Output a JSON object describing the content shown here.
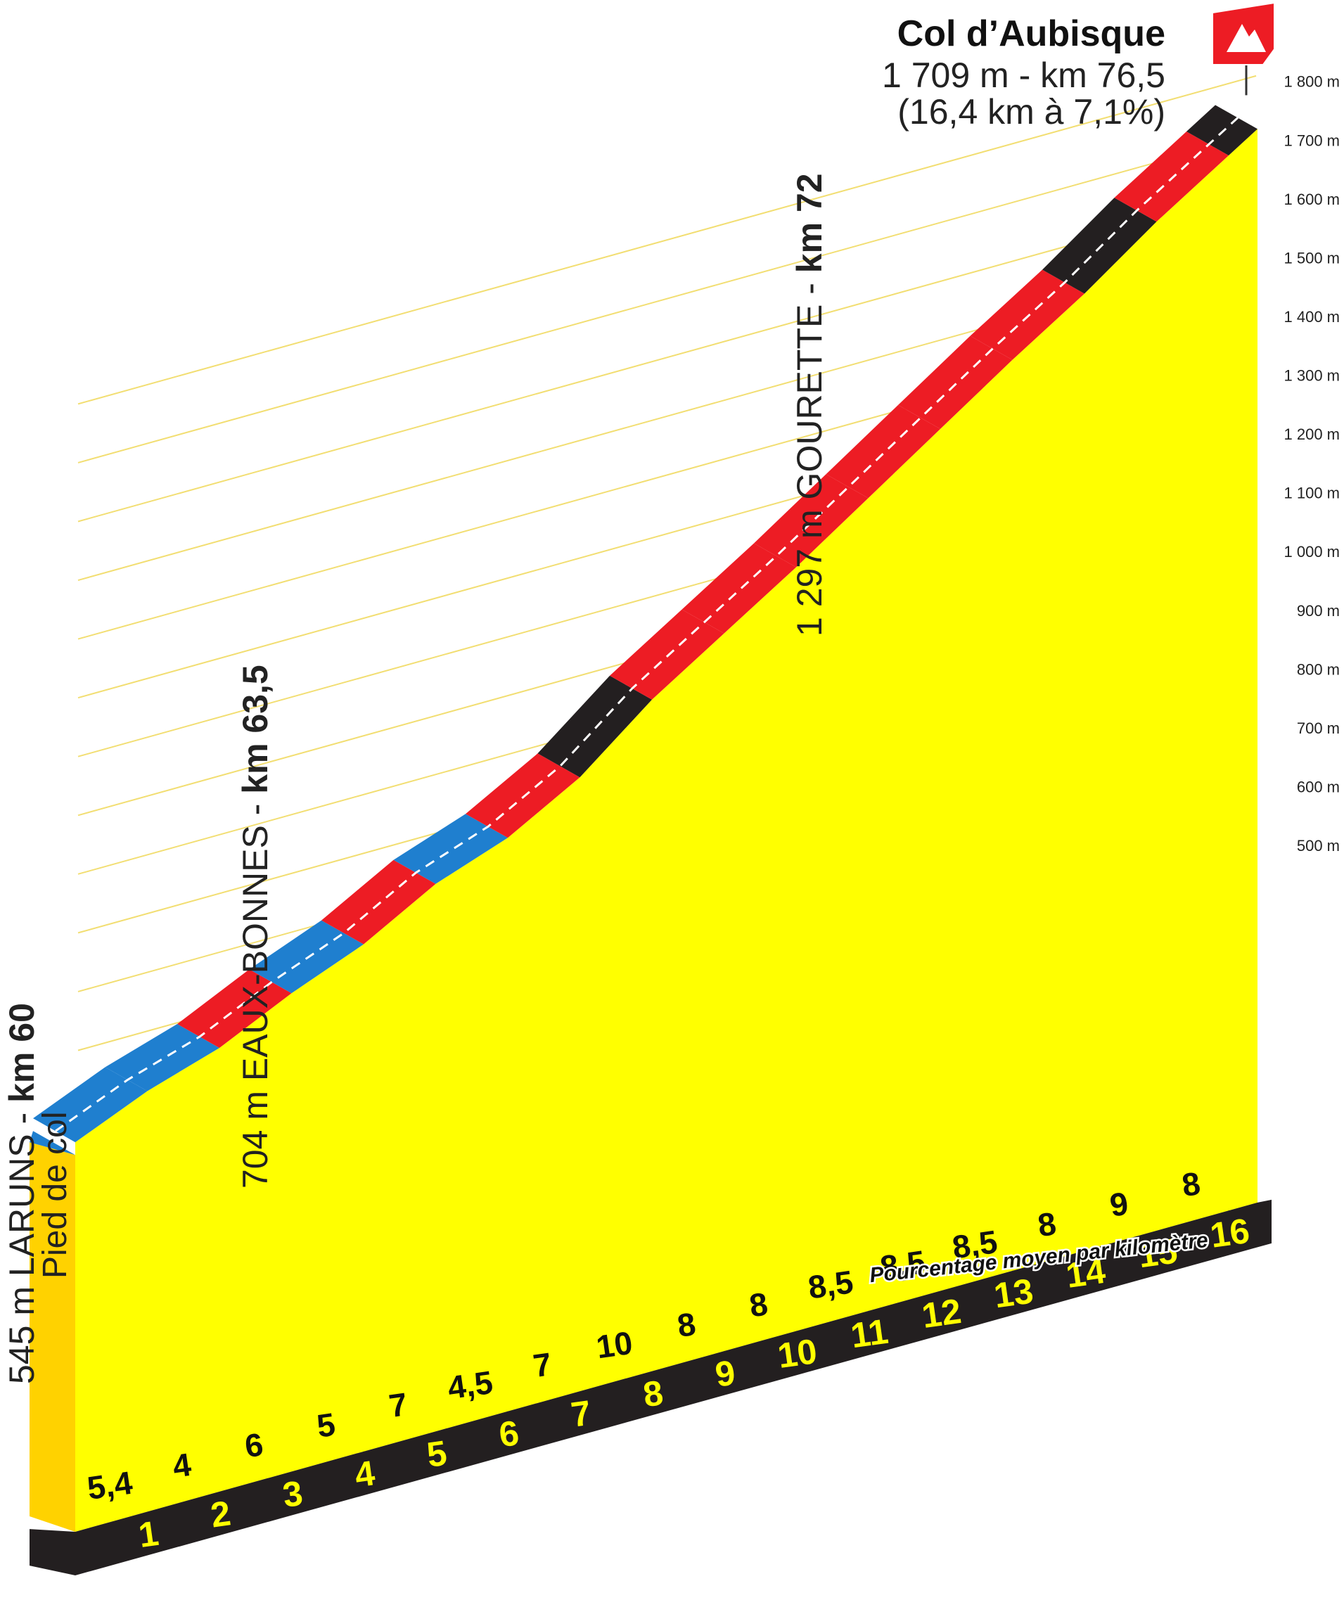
{
  "summit": {
    "name": "Col d’Aubisque",
    "line1": "1 709 m - km 76,5",
    "line2": "(16,4 km à 7,1%)"
  },
  "locations": [
    {
      "id": "laruns",
      "label": "545 m LARUNS - ",
      "label_bold": "km 60",
      "sub": "Pied de col"
    },
    {
      "id": "eaux-bonnes",
      "label": "704 m EAUX-BONNES - ",
      "label_bold": "km 63,5"
    },
    {
      "id": "gourette",
      "label": "1 297 m GOURETTE - ",
      "label_bold": "km 72"
    }
  ],
  "legend": {
    "percent_caption": "Pourcentage moyen par kilomètre"
  },
  "colors": {
    "fill": "#ffff00",
    "start_block": "#ffd200",
    "base": "#231f20",
    "grad_blue": "#1f7fcf",
    "grad_red": "#ed1c24",
    "grad_black": "#231f20",
    "flag": "#ed1c24"
  },
  "chart_data": {
    "type": "area",
    "title": "Col d’Aubisque",
    "xlabel": "",
    "ylabel": "",
    "ylim": [
      400,
      1800
    ],
    "y_ticks": [
      {
        "value": 500,
        "label": "500 m"
      },
      {
        "value": 600,
        "label": "600 m"
      },
      {
        "value": 700,
        "label": "700 m"
      },
      {
        "value": 800,
        "label": "800 m"
      },
      {
        "value": 900,
        "label": "900 m"
      },
      {
        "value": 1000,
        "label": "1 000 m"
      },
      {
        "value": 1100,
        "label": "1 100 m"
      },
      {
        "value": 1200,
        "label": "1 200 m"
      },
      {
        "value": 1300,
        "label": "1 300 m"
      },
      {
        "value": 1400,
        "label": "1 400 m"
      },
      {
        "value": 1500,
        "label": "1 500 m"
      },
      {
        "value": 1600,
        "label": "1 600 m"
      },
      {
        "value": 1700,
        "label": "1 700 m"
      },
      {
        "value": 1800,
        "label": "1 800 m"
      }
    ],
    "km_markers": [
      "1",
      "2",
      "3",
      "4",
      "5",
      "6",
      "7",
      "8",
      "9",
      "10",
      "11",
      "12",
      "13",
      "14",
      "15",
      "16"
    ],
    "segments": [
      {
        "km_from": 0,
        "km_to": 1,
        "gradient": 5.4,
        "label": "5,4",
        "color": "blue"
      },
      {
        "km_from": 1,
        "km_to": 2,
        "gradient": 4,
        "label": "4",
        "color": "blue"
      },
      {
        "km_from": 2,
        "km_to": 3,
        "gradient": 6,
        "label": "6",
        "color": "red"
      },
      {
        "km_from": 3,
        "km_to": 4,
        "gradient": 5,
        "label": "5",
        "color": "blue"
      },
      {
        "km_from": 4,
        "km_to": 5,
        "gradient": 7,
        "label": "7",
        "color": "red"
      },
      {
        "km_from": 5,
        "km_to": 6,
        "gradient": 4.5,
        "label": "4,5",
        "color": "blue"
      },
      {
        "km_from": 6,
        "km_to": 7,
        "gradient": 7,
        "label": "7",
        "color": "red"
      },
      {
        "km_from": 7,
        "km_to": 8,
        "gradient": 10,
        "label": "10",
        "color": "black"
      },
      {
        "km_from": 8,
        "km_to": 9,
        "gradient": 8,
        "label": "8",
        "color": "red"
      },
      {
        "km_from": 9,
        "km_to": 10,
        "gradient": 8,
        "label": "8",
        "color": "red"
      },
      {
        "km_from": 10,
        "km_to": 11,
        "gradient": 8.5,
        "label": "8,5",
        "color": "red"
      },
      {
        "km_from": 11,
        "km_to": 12,
        "gradient": 8.5,
        "label": "8,5",
        "color": "red"
      },
      {
        "km_from": 12,
        "km_to": 13,
        "gradient": 8.5,
        "label": "8,5",
        "color": "red"
      },
      {
        "km_from": 13,
        "km_to": 14,
        "gradient": 8,
        "label": "8",
        "color": "red"
      },
      {
        "km_from": 14,
        "km_to": 15,
        "gradient": 9,
        "label": "9",
        "color": "black"
      },
      {
        "km_from": 15,
        "km_to": 16,
        "gradient": 8,
        "label": "8",
        "color": "red"
      },
      {
        "km_from": 16,
        "km_to": 16.4,
        "gradient": 8,
        "label": "",
        "color": "black"
      }
    ],
    "start_altitude": 545,
    "summit_altitude": 1709,
    "grid": true
  }
}
